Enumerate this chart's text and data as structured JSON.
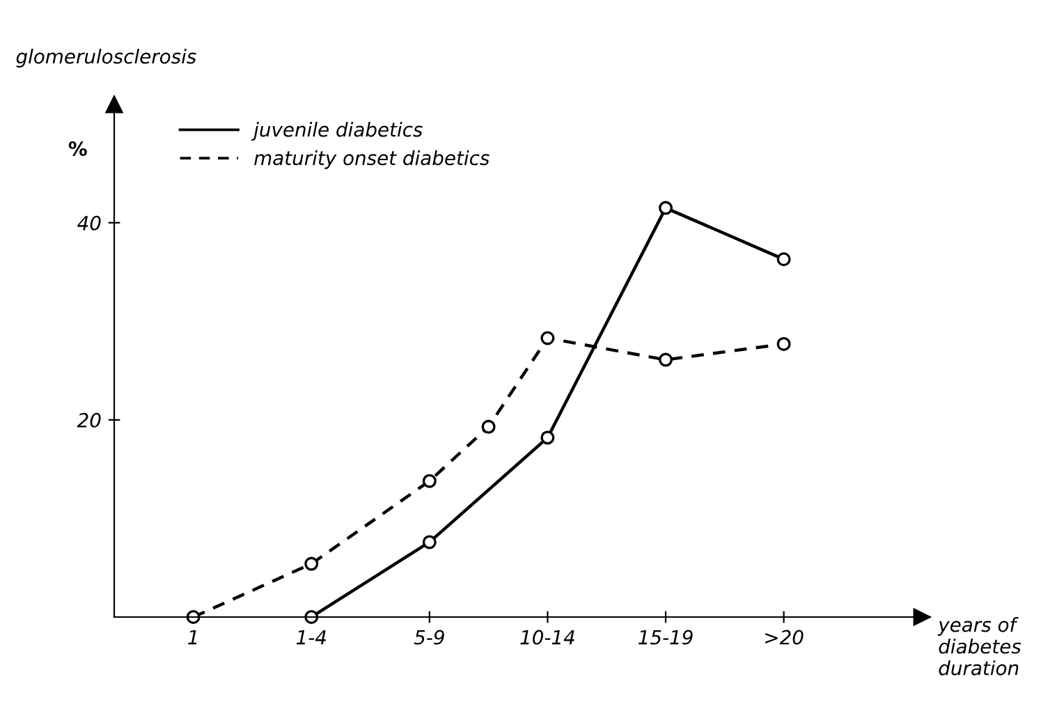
{
  "chart_data": {
    "type": "line",
    "ylabel": "glomerulosclerosis",
    "annotations": [
      "%",
      "years of diabetes duration"
    ],
    "categories": [
      "1",
      null,
      "1-4",
      null,
      "5-9",
      null,
      "10-14",
      null,
      "15-19",
      null,
      ">20"
    ],
    "series": [
      {
        "name": "juvenile diabetics",
        "color": "#000000",
        "line_style": "solid",
        "values": [
          null,
          null,
          0,
          null,
          7.6,
          null,
          18.2,
          null,
          41.5,
          null,
          36.3
        ]
      },
      {
        "name": "maturity onset diabetics",
        "color": "#000000",
        "line_style": "dashed",
        "values": [
          0,
          null,
          5.4,
          null,
          13.8,
          19.3,
          28.3,
          null,
          26.1,
          null,
          27.7
        ]
      }
    ],
    "marker": "circle",
    "legend": "top left",
    "ylim": [
      0,
      52
    ],
    "yticks": [
      20,
      40
    ]
  }
}
